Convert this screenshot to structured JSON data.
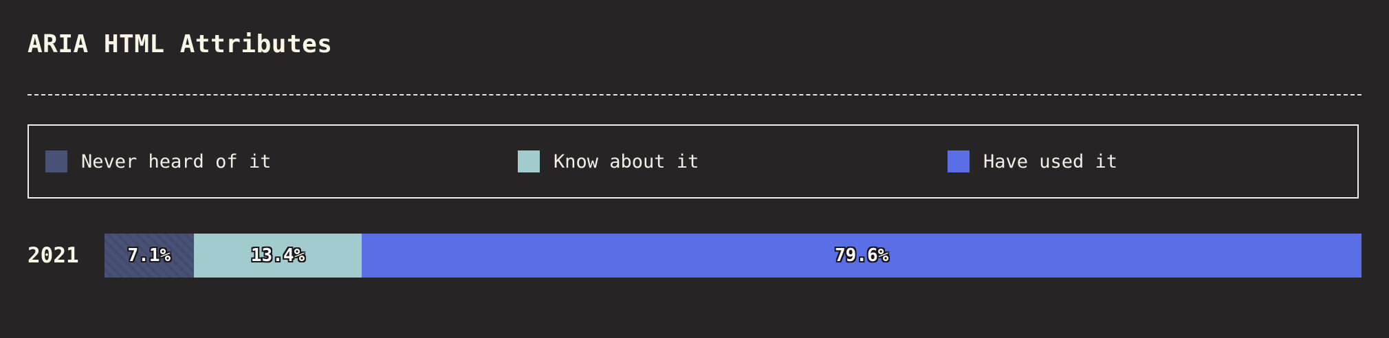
{
  "chart_data": {
    "type": "bar",
    "title": "ARIA HTML Attributes",
    "orientation": "horizontal-stacked",
    "categories": [
      "2021"
    ],
    "series": [
      {
        "name": "Never heard of it",
        "values": [
          7.1
        ],
        "color": "#4a5177",
        "pattern": "diagonal-stripes"
      },
      {
        "name": "Know about it",
        "values": [
          13.4
        ],
        "color": "#a2cbcd"
      },
      {
        "name": "Have used it",
        "values": [
          79.6
        ],
        "color": "#5a6ee6"
      }
    ],
    "data_labels": [
      "7.1%",
      "13.4%",
      "79.6%"
    ],
    "legend_placement": "top",
    "grid": false
  }
}
